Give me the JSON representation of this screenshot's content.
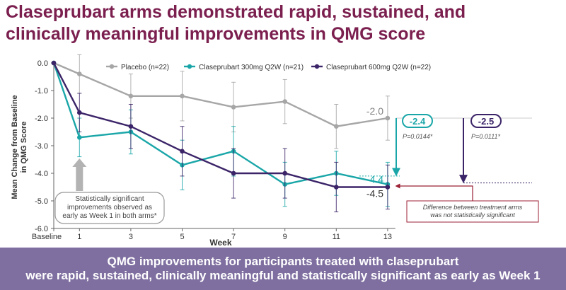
{
  "title": {
    "line1": "Claseprubart arms demonstrated rapid, sustained, and",
    "line2": "clinically meaningful improvements in QMG score"
  },
  "colors": {
    "title": "#7b1f4f",
    "placebo": "#a6a6a6",
    "c300": "#1aa6a8",
    "c600": "#3b2468",
    "banner": "#7f6fa0",
    "note_border": "#9b2035"
  },
  "chart_data": {
    "type": "line",
    "xlabel": "Week",
    "ylabel_lines": [
      "Mean Change from Baseline",
      "in QMG Score"
    ],
    "x_tick_labels": [
      "Baseline",
      "1",
      "3",
      "5",
      "7",
      "9",
      "11",
      "13"
    ],
    "y_tick_labels": [
      "0.0",
      "-1.0",
      "-2.0",
      "-3.0",
      "-4.0",
      "-5.0",
      "-6.0"
    ],
    "x": [
      0,
      1,
      3,
      5,
      7,
      9,
      11,
      13
    ],
    "ylim": [
      -6,
      0
    ],
    "legend_position": "top",
    "series": [
      {
        "name": "Placebo (n=22)",
        "color": "#a6a6a6",
        "values": [
          0,
          -0.4,
          -1.2,
          -1.2,
          -1.6,
          -1.4,
          -2.3,
          -2.0
        ],
        "err": [
          0,
          0.7,
          0.8,
          0.9,
          0.9,
          0.8,
          0.8,
          0.8
        ]
      },
      {
        "name": "Claseprubart 300mg Q2W (n=21)",
        "color": "#1aa6a8",
        "values": [
          0,
          -2.7,
          -2.5,
          -3.7,
          -3.2,
          -4.4,
          -4.0,
          -4.4
        ],
        "err": [
          0,
          0.7,
          0.8,
          0.9,
          0.9,
          0.8,
          0.8,
          0.8
        ]
      },
      {
        "name": "Claseprubart 600mg Q2W  (n=22)",
        "color": "#3b2468",
        "values": [
          0,
          -1.8,
          -2.3,
          -3.2,
          -4.0,
          -4.0,
          -4.5,
          -4.5
        ],
        "err": [
          0,
          0.7,
          0.8,
          0.9,
          0.9,
          0.9,
          0.9,
          0.8
        ]
      }
    ],
    "end_labels": {
      "placebo": "-2.0",
      "c300": "-4.4",
      "c600": "-4.5"
    },
    "differences": {
      "c300": {
        "value": "-2.4",
        "p": "P=0.0144*"
      },
      "c600": {
        "value": "-2.5",
        "p": "P=0.0111*"
      }
    },
    "annotation_week1": "Statistically significant improvements observed as early as Week 1 in both arms*",
    "annotation_week1_lines": [
      "Statistically significant",
      "improvements observed as",
      "early as Week 1 in both arms*"
    ],
    "annotation_between_arms_lines": [
      "Difference between treatment arms",
      "was not statistically significant"
    ]
  },
  "banner": {
    "line1": "QMG improvements for participants treated with claseprubart",
    "line2": "were rapid, sustained, clinically meaningful and statistically significant as early as Week 1"
  }
}
